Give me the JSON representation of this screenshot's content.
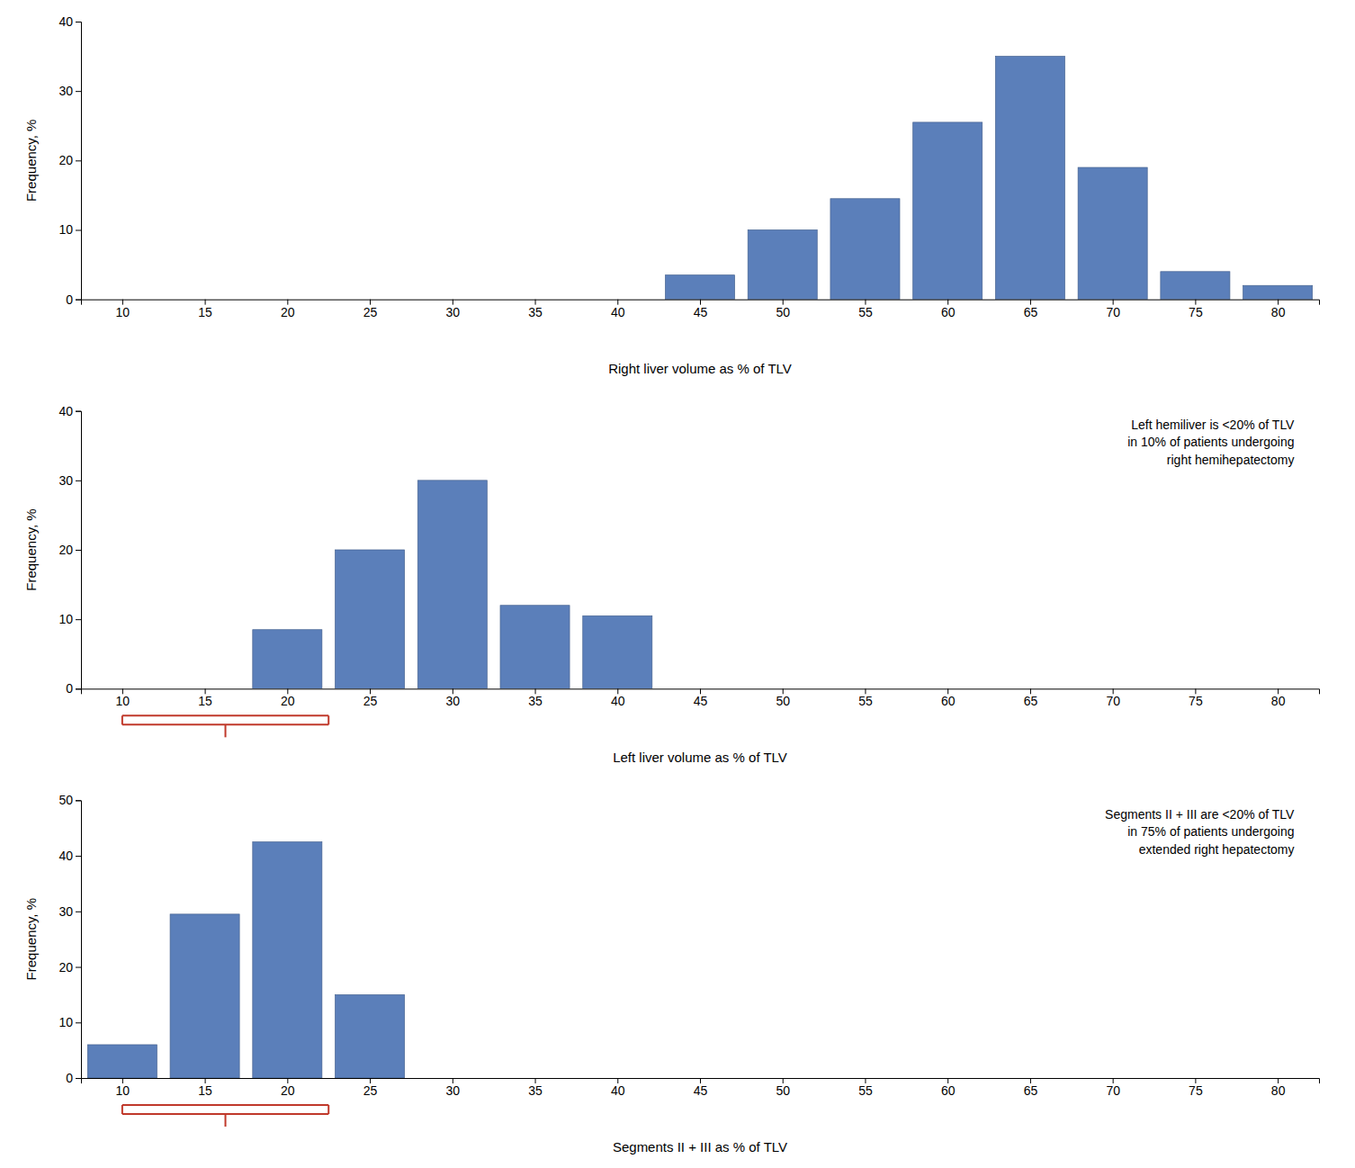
{
  "chart_data": [
    {
      "type": "bar",
      "xlabel": "Right liver volume as % of TLV",
      "ylabel": "Frequency, %",
      "x": [
        45,
        50,
        55,
        60,
        65,
        70,
        75,
        80
      ],
      "values": [
        3.5,
        10,
        14.5,
        25.5,
        35,
        19,
        4,
        2
      ],
      "color": "#5b7fba",
      "xlim": [
        7.5,
        82.5
      ],
      "xticks": [
        10,
        15,
        20,
        25,
        30,
        35,
        40,
        45,
        50,
        55,
        60,
        65,
        70,
        75,
        80
      ],
      "ylim": [
        0,
        40
      ],
      "yticks": [
        0,
        10,
        20,
        30,
        40
      ],
      "grid": false
    },
    {
      "type": "bar",
      "xlabel": "Left liver volume as % of TLV",
      "ylabel": "Frequency, %",
      "x": [
        20,
        25,
        30,
        35,
        40
      ],
      "values": [
        8.5,
        20,
        30,
        12,
        10.5
      ],
      "color": "#5b7fba",
      "xlim": [
        7.5,
        82.5
      ],
      "xticks": [
        10,
        15,
        20,
        25,
        30,
        35,
        40,
        45,
        50,
        55,
        60,
        65,
        70,
        75,
        80
      ],
      "ylim": [
        0,
        40
      ],
      "yticks": [
        0,
        10,
        20,
        30,
        40
      ],
      "grid": false,
      "annotation": "Left hemiliver is <20% of TLV\nin 10% of patients undergoing\nright hemihepatectomy",
      "bracket": {
        "x": [
          10,
          22.5
        ],
        "color": "#c0392b"
      }
    },
    {
      "type": "bar",
      "xlabel": "Segments II + III as % of TLV",
      "ylabel": "Frequency, %",
      "x": [
        10,
        15,
        20,
        25
      ],
      "values": [
        6,
        29.5,
        42.5,
        15
      ],
      "color": "#5b7fba",
      "xlim": [
        7.5,
        82.5
      ],
      "xticks": [
        10,
        15,
        20,
        25,
        30,
        35,
        40,
        45,
        50,
        55,
        60,
        65,
        70,
        75,
        80
      ],
      "ylim": [
        0,
        50
      ],
      "yticks": [
        0,
        10,
        20,
        30,
        40,
        50
      ],
      "grid": false,
      "annotation": "Segments II + III are <20% of TLV\nin 75% of patients undergoing\nextended right hepatectomy",
      "bracket": {
        "x": [
          10,
          22.5
        ],
        "color": "#c0392b"
      }
    }
  ]
}
